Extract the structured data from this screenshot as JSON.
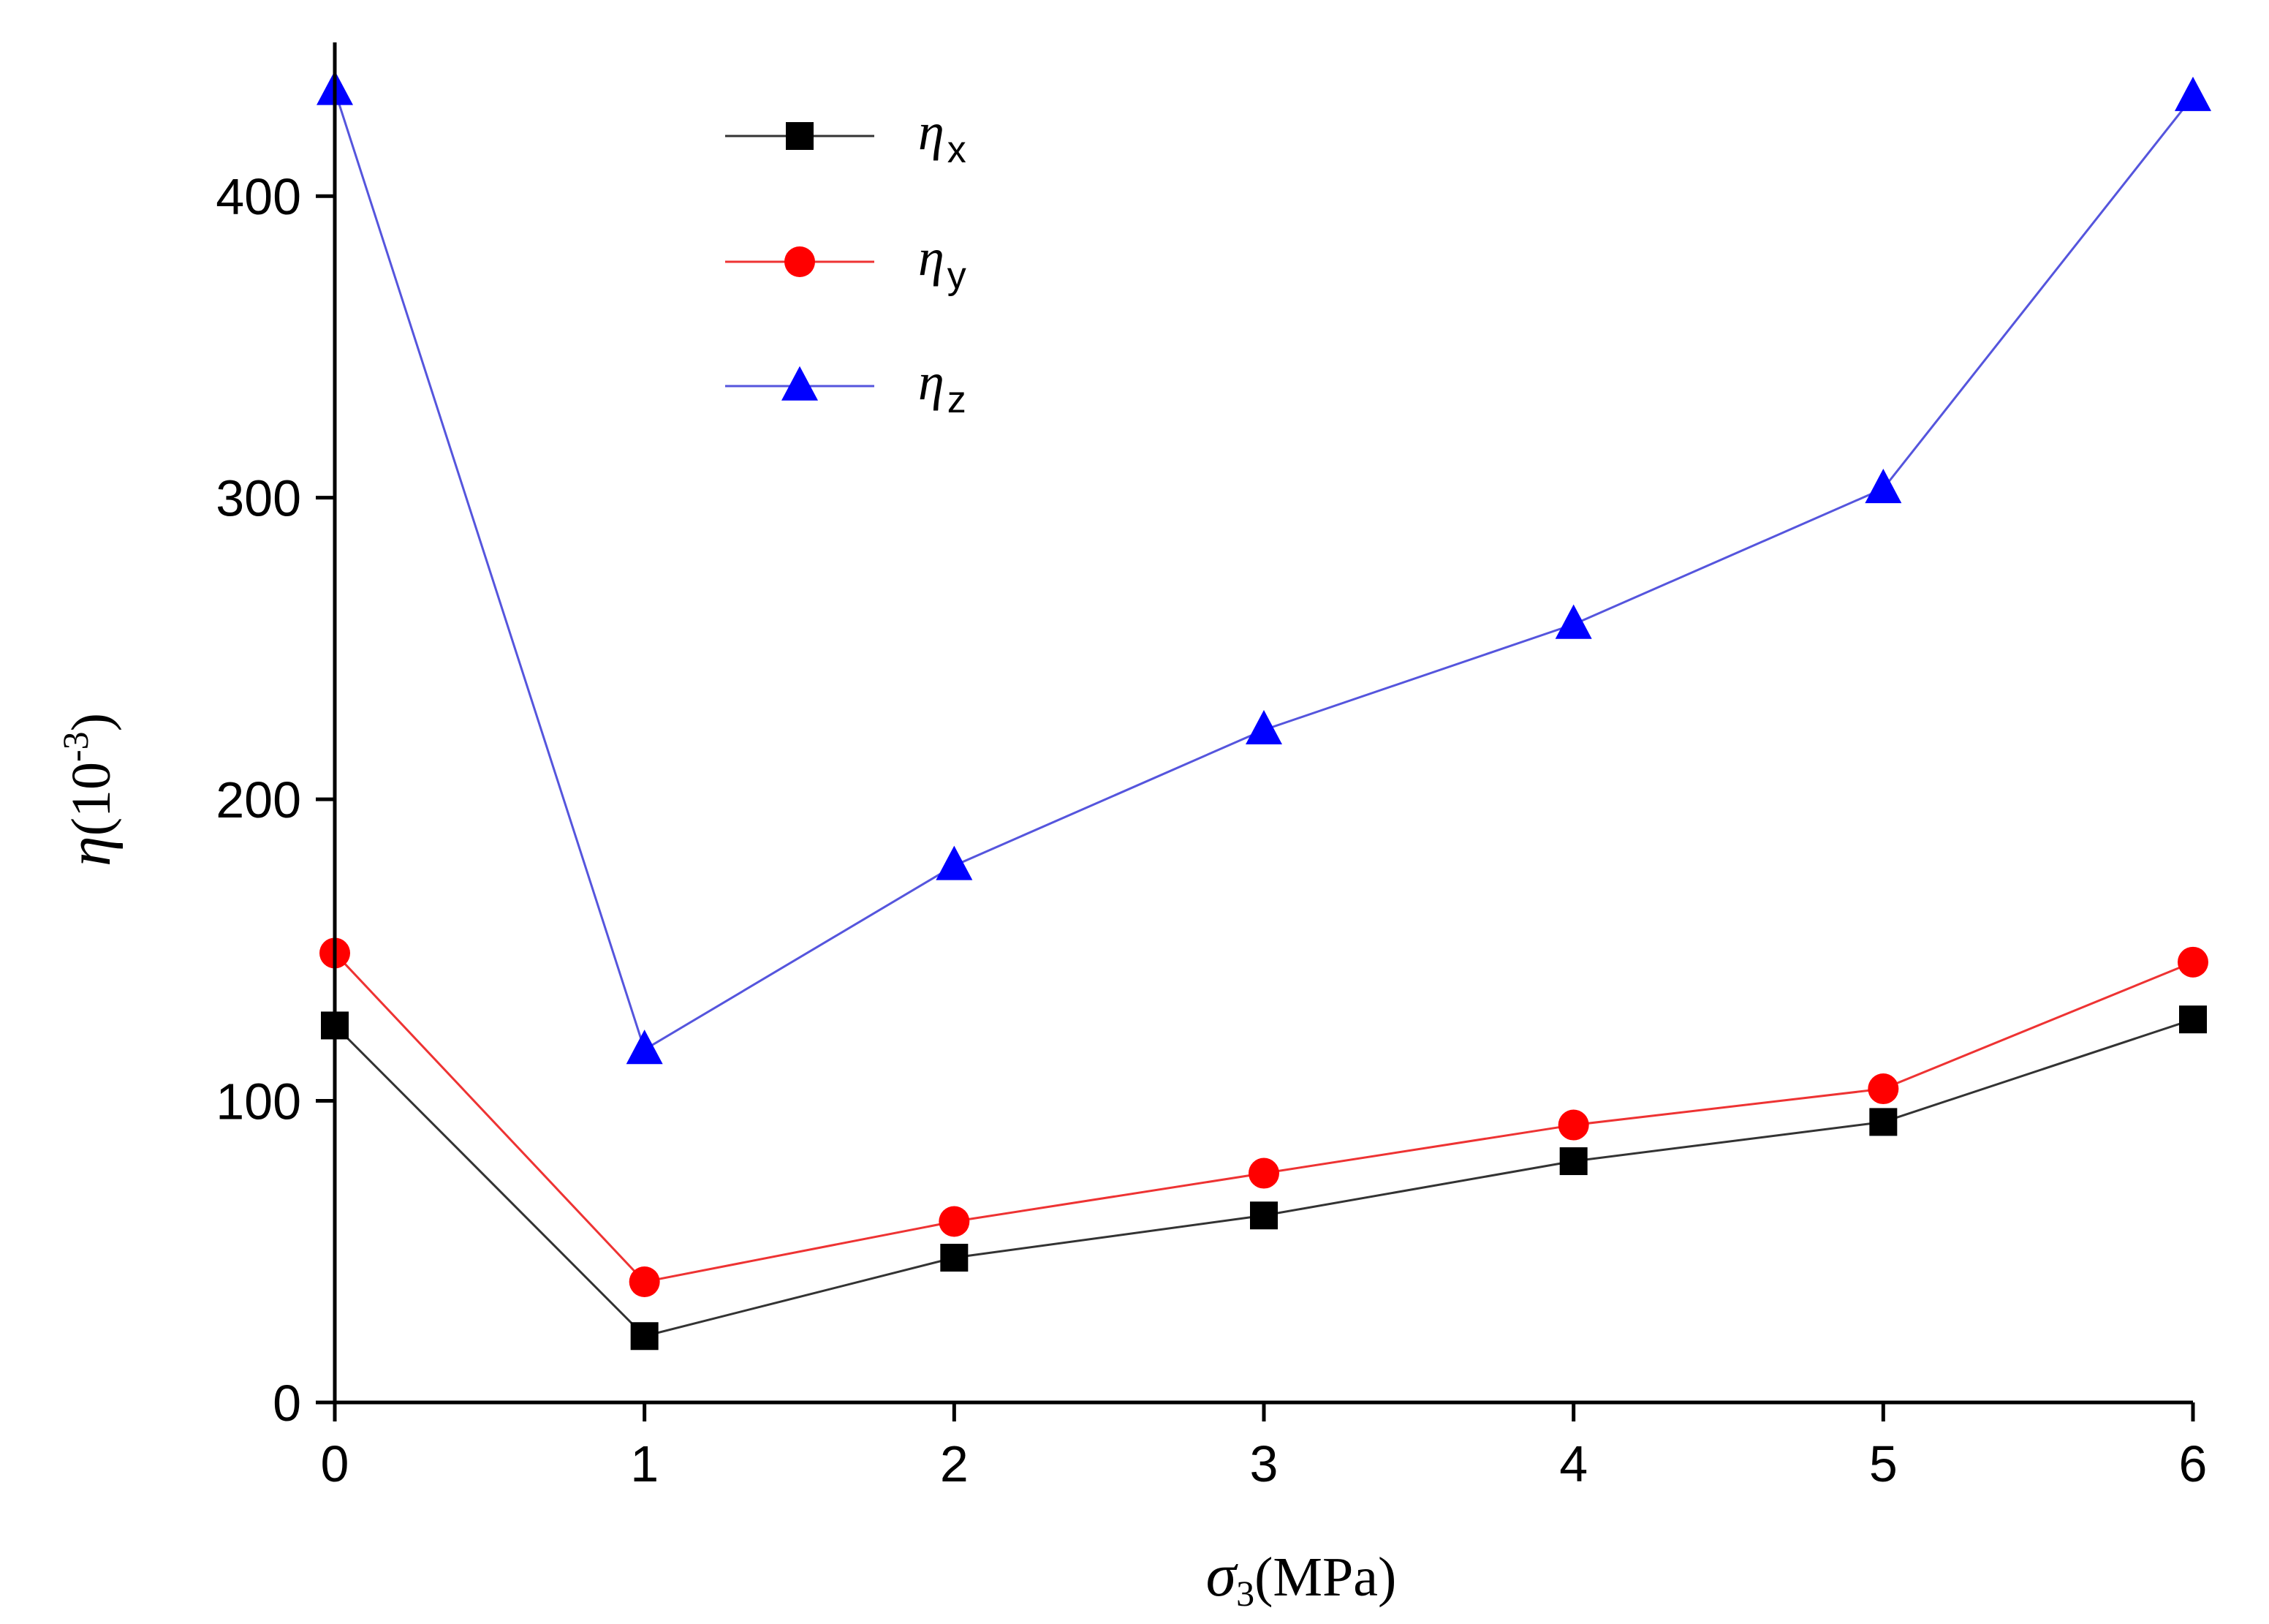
{
  "chart_data": {
    "type": "line",
    "title": "",
    "xlabel": {
      "symbol": "σ",
      "sub": "3",
      "unit": "(MPa)"
    },
    "ylabel": {
      "symbol": "η",
      "unit_base": "(10",
      "unit_exp": "-3",
      "unit_close": ")"
    },
    "xlim": [
      0,
      6
    ],
    "ylim": [
      0,
      450
    ],
    "x_ticks": [
      "0",
      "1",
      "2",
      "3",
      "4",
      "5",
      "6"
    ],
    "y_ticks": [
      "0",
      "100",
      "200",
      "300",
      "400"
    ],
    "x": [
      0,
      1,
      2,
      3,
      4,
      5,
      6
    ],
    "legend_position": "top-left",
    "series": [
      {
        "name": "η",
        "sub": "x",
        "marker": "square",
        "color": "#000000",
        "line_color": "#333333",
        "values": [
          125,
          22,
          48,
          62,
          80,
          93,
          127
        ]
      },
      {
        "name": "η",
        "sub": "y",
        "marker": "circle",
        "color": "#ff0000",
        "line_color": "#ee3333",
        "values": [
          149,
          40,
          60,
          76,
          92,
          104,
          146
        ]
      },
      {
        "name": "η",
        "sub": "z",
        "marker": "triangle",
        "color": "#0000ff",
        "line_color": "#5555dd",
        "values": [
          435,
          117,
          178,
          223,
          258,
          303,
          433
        ]
      }
    ]
  }
}
